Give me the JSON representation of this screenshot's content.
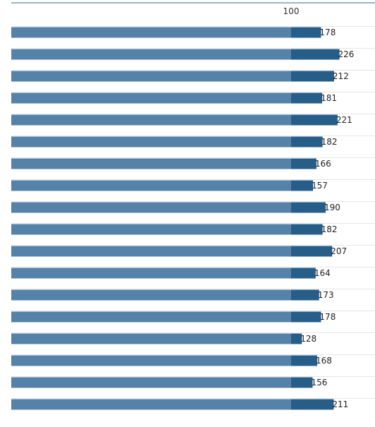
{
  "chart_data": {
    "type": "bar",
    "orientation": "horizontal",
    "series": [
      {
        "values": [
          178,
          226,
          212,
          181,
          221,
          182,
          166,
          157,
          190,
          182,
          207,
          164,
          173,
          178,
          128,
          168,
          156,
          211
        ]
      }
    ],
    "x_ticks": [
      "100"
    ],
    "reference_value": 100,
    "title": "",
    "xlabel": "",
    "ylabel": "",
    "grid": true,
    "legend": "none",
    "colors": {
      "base_segment": "#5582a9",
      "excess_segment": "#265d89",
      "axis_line": "#3b6a8e",
      "grid_line": "#e6e6e6"
    }
  }
}
